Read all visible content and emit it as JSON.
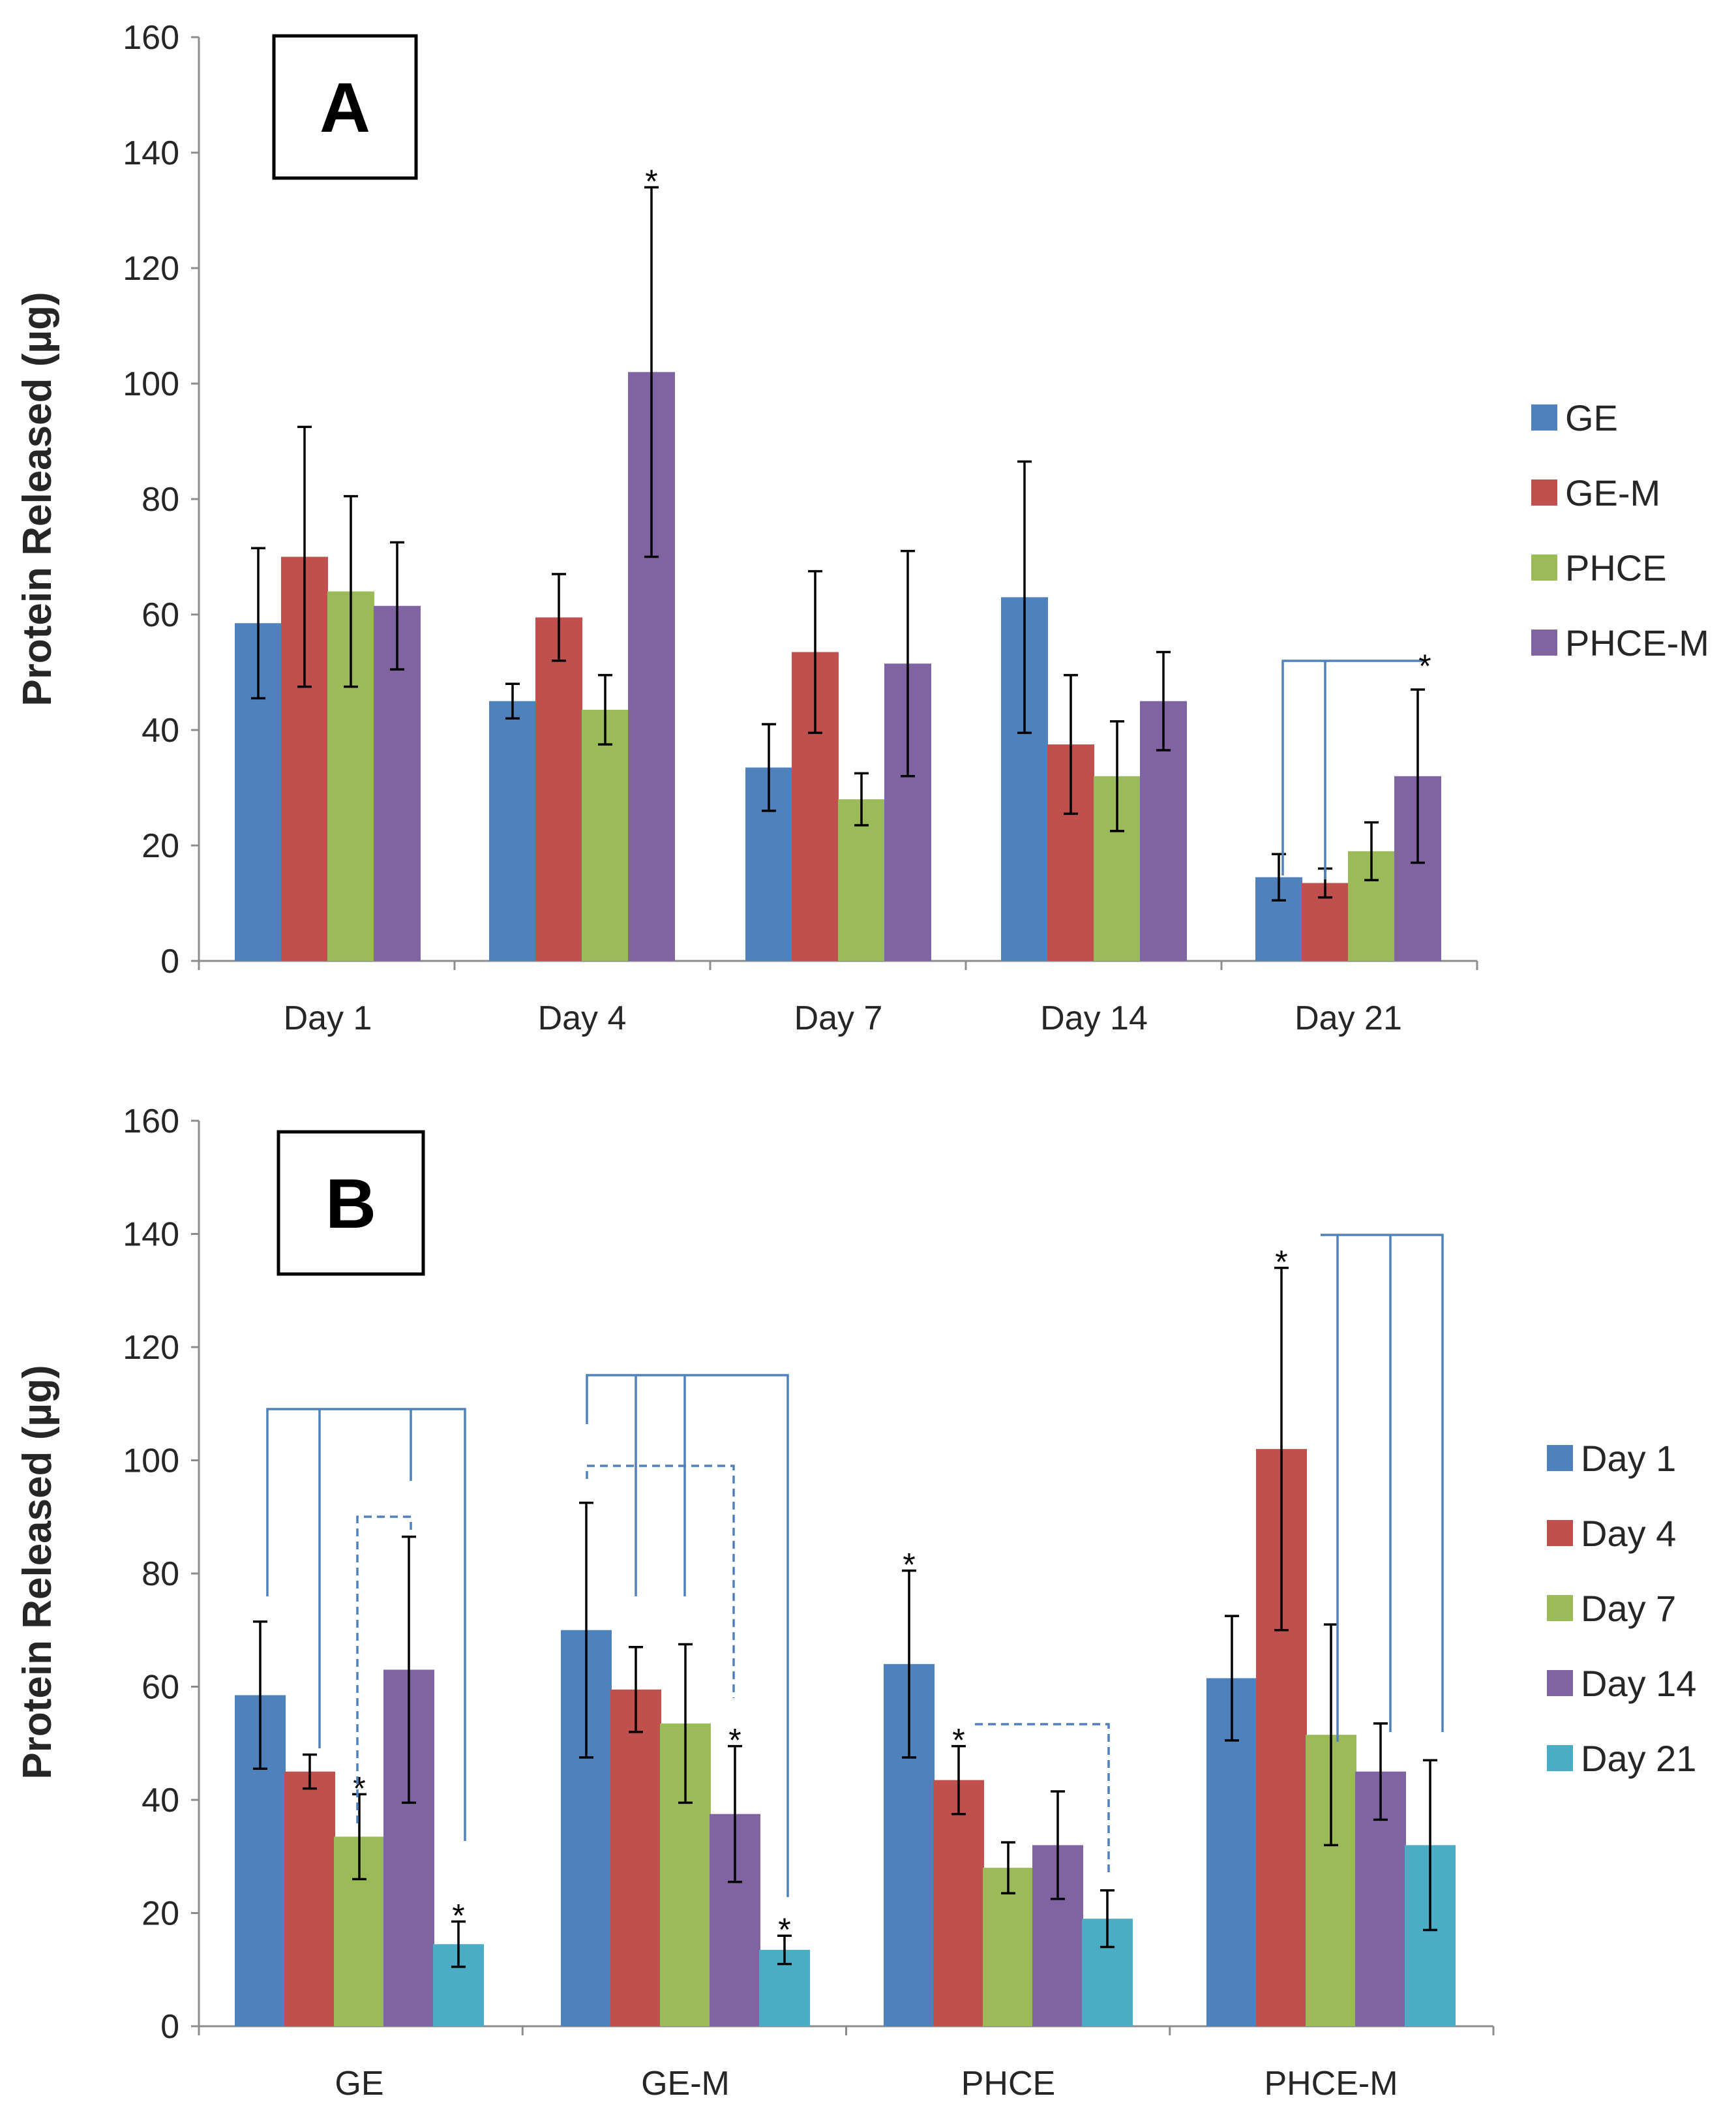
{
  "colors": {
    "blue": "#4f81bd",
    "red": "#c0504d",
    "green": "#9bbb59",
    "purple": "#8064a2",
    "teal": "#4bacc6"
  },
  "chart_data": [
    {
      "type": "bar",
      "panel_label": "A",
      "ylabel": "Protein Released (µg)",
      "ylim": [
        0,
        160
      ],
      "yticks": [
        0,
        20,
        40,
        60,
        80,
        100,
        120,
        140,
        160
      ],
      "legend_position": "right",
      "categories": [
        "Day 1",
        "Day 4",
        "Day 7",
        "Day 14",
        "Day 21"
      ],
      "series": [
        {
          "name": "GE",
          "color": "#4f81bd",
          "values": [
            58.5,
            45,
            33.5,
            63,
            14.5
          ],
          "error": [
            13,
            3,
            7.5,
            23.5,
            4
          ]
        },
        {
          "name": "GE-M",
          "color": "#c0504d",
          "values": [
            70,
            59.5,
            53.5,
            37.5,
            13.5
          ],
          "error": [
            22.5,
            7.5,
            14,
            12,
            2.5
          ]
        },
        {
          "name": "PHCE",
          "color": "#9bbb59",
          "values": [
            64,
            43.5,
            28,
            32,
            19
          ],
          "error": [
            16.5,
            6,
            4.5,
            9.5,
            5
          ]
        },
        {
          "name": "PHCE-M",
          "color": "#8064a2",
          "values": [
            61.5,
            102,
            51.5,
            45,
            32
          ],
          "error": [
            11,
            32,
            19.5,
            8.5,
            15
          ]
        }
      ],
      "annotations": [
        {
          "text": "*",
          "category": "Day 4",
          "series": "PHCE-M"
        },
        {
          "text": "*",
          "category": "Day 21",
          "series": "PHCE-M"
        }
      ]
    },
    {
      "type": "bar",
      "panel_label": "B",
      "ylabel": "Protein Released (µg)",
      "ylim": [
        0,
        160
      ],
      "yticks": [
        0,
        20,
        40,
        60,
        80,
        100,
        120,
        140,
        160
      ],
      "legend_position": "right",
      "categories": [
        "GE",
        "GE-M",
        "PHCE",
        "PHCE-M"
      ],
      "series": [
        {
          "name": "Day 1",
          "color": "#4f81bd",
          "values": [
            58.5,
            70,
            64,
            61.5
          ],
          "error": [
            13,
            22.5,
            16.5,
            11
          ]
        },
        {
          "name": "Day 4",
          "color": "#c0504d",
          "values": [
            45,
            59.5,
            43.5,
            102
          ],
          "error": [
            3,
            7.5,
            6,
            32
          ]
        },
        {
          "name": "Day 7",
          "color": "#9bbb59",
          "values": [
            33.5,
            53.5,
            28,
            51.5
          ],
          "error": [
            7.5,
            14,
            4.5,
            19.5
          ]
        },
        {
          "name": "Day 14",
          "color": "#8064a2",
          "values": [
            63,
            37.5,
            32,
            45
          ],
          "error": [
            23.5,
            12,
            9.5,
            8.5
          ]
        },
        {
          "name": "Day 21",
          "color": "#4bacc6",
          "values": [
            14.5,
            13.5,
            19,
            32
          ],
          "error": [
            4,
            2.5,
            5,
            15
          ]
        }
      ],
      "annotations": [
        {
          "text": "*",
          "category": "GE",
          "series": "Day 7"
        },
        {
          "text": "*",
          "category": "GE",
          "series": "Day 21"
        },
        {
          "text": "*",
          "category": "GE-M",
          "series": "Day 14"
        },
        {
          "text": "*",
          "category": "GE-M",
          "series": "Day 21"
        },
        {
          "text": "*",
          "category": "PHCE",
          "series": "Day 1"
        },
        {
          "text": "*",
          "category": "PHCE",
          "series": "Day 4"
        },
        {
          "text": "*",
          "category": "PHCE-M",
          "series": "Day 4"
        }
      ]
    }
  ]
}
